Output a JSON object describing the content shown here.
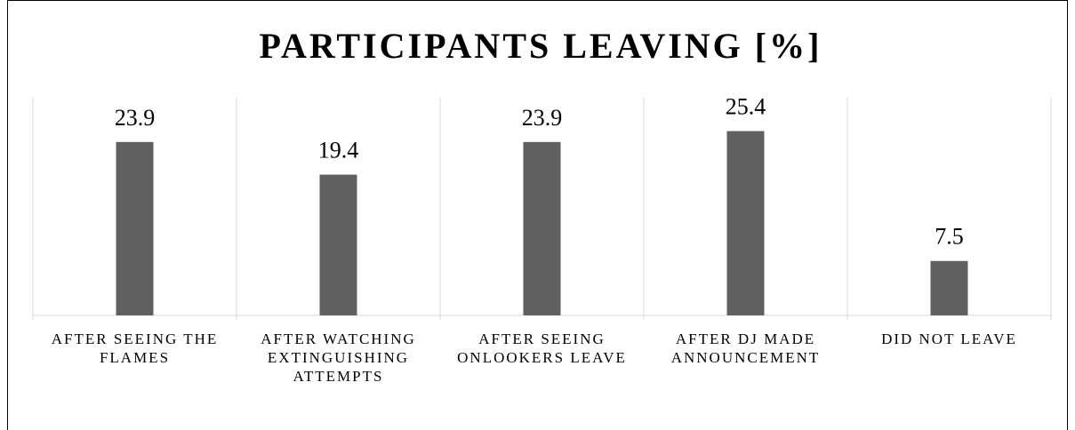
{
  "chart_data": {
    "type": "bar",
    "title": "PARTICIPANTS LEAVING [%]",
    "categories": [
      "AFTER SEEING THE FLAMES",
      "AFTER WATCHING EXTINGUISHING ATTEMPTS",
      "AFTER SEEING ONLOOKERS LEAVE",
      "AFTER DJ MADE ANNOUNCEMENT",
      "DID NOT LEAVE"
    ],
    "values": [
      23.9,
      19.4,
      23.9,
      25.4,
      7.5
    ],
    "color": "#606060",
    "ylim": [
      0,
      30
    ]
  }
}
